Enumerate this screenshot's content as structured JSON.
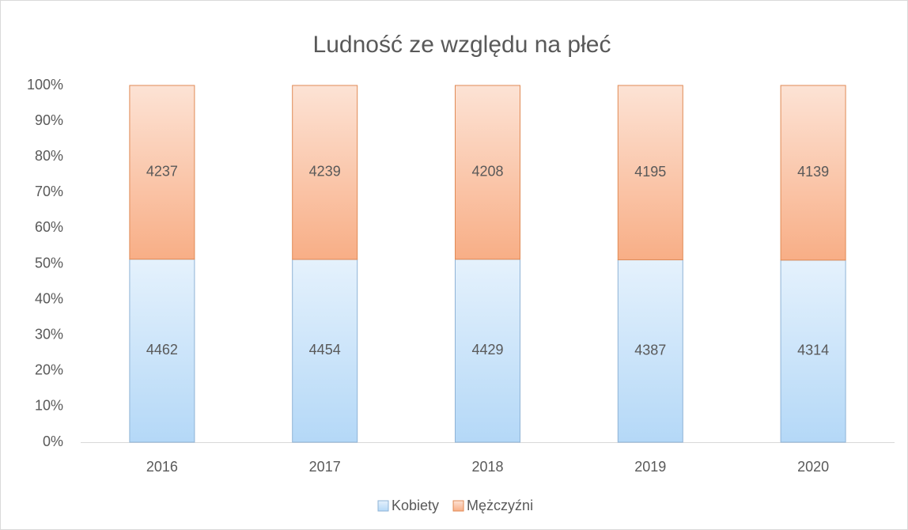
{
  "chart_data": {
    "type": "bar",
    "stacking": "percent",
    "title": "Ludność ze względu na płeć",
    "categories": [
      "2016",
      "2017",
      "2018",
      "2019",
      "2020"
    ],
    "series": [
      {
        "name": "Kobiety",
        "color": "#b4d8f7",
        "values": [
          4462,
          4454,
          4429,
          4387,
          4314
        ]
      },
      {
        "name": "Mężczyźni",
        "color": "#f8ae86",
        "values": [
          4237,
          4239,
          4208,
          4195,
          4139
        ]
      }
    ],
    "ylim": [
      0,
      100
    ],
    "yticks": [
      {
        "value": 0,
        "label": "0%"
      },
      {
        "value": 10,
        "label": "10%"
      },
      {
        "value": 20,
        "label": "20%"
      },
      {
        "value": 30,
        "label": "30%"
      },
      {
        "value": 40,
        "label": "40%"
      },
      {
        "value": 50,
        "label": "50%"
      },
      {
        "value": 60,
        "label": "60%"
      },
      {
        "value": 70,
        "label": "70%"
      },
      {
        "value": 80,
        "label": "80%"
      },
      {
        "value": 90,
        "label": "90%"
      },
      {
        "value": 100,
        "label": "100%"
      }
    ],
    "grid": false,
    "legend": "bottom"
  }
}
